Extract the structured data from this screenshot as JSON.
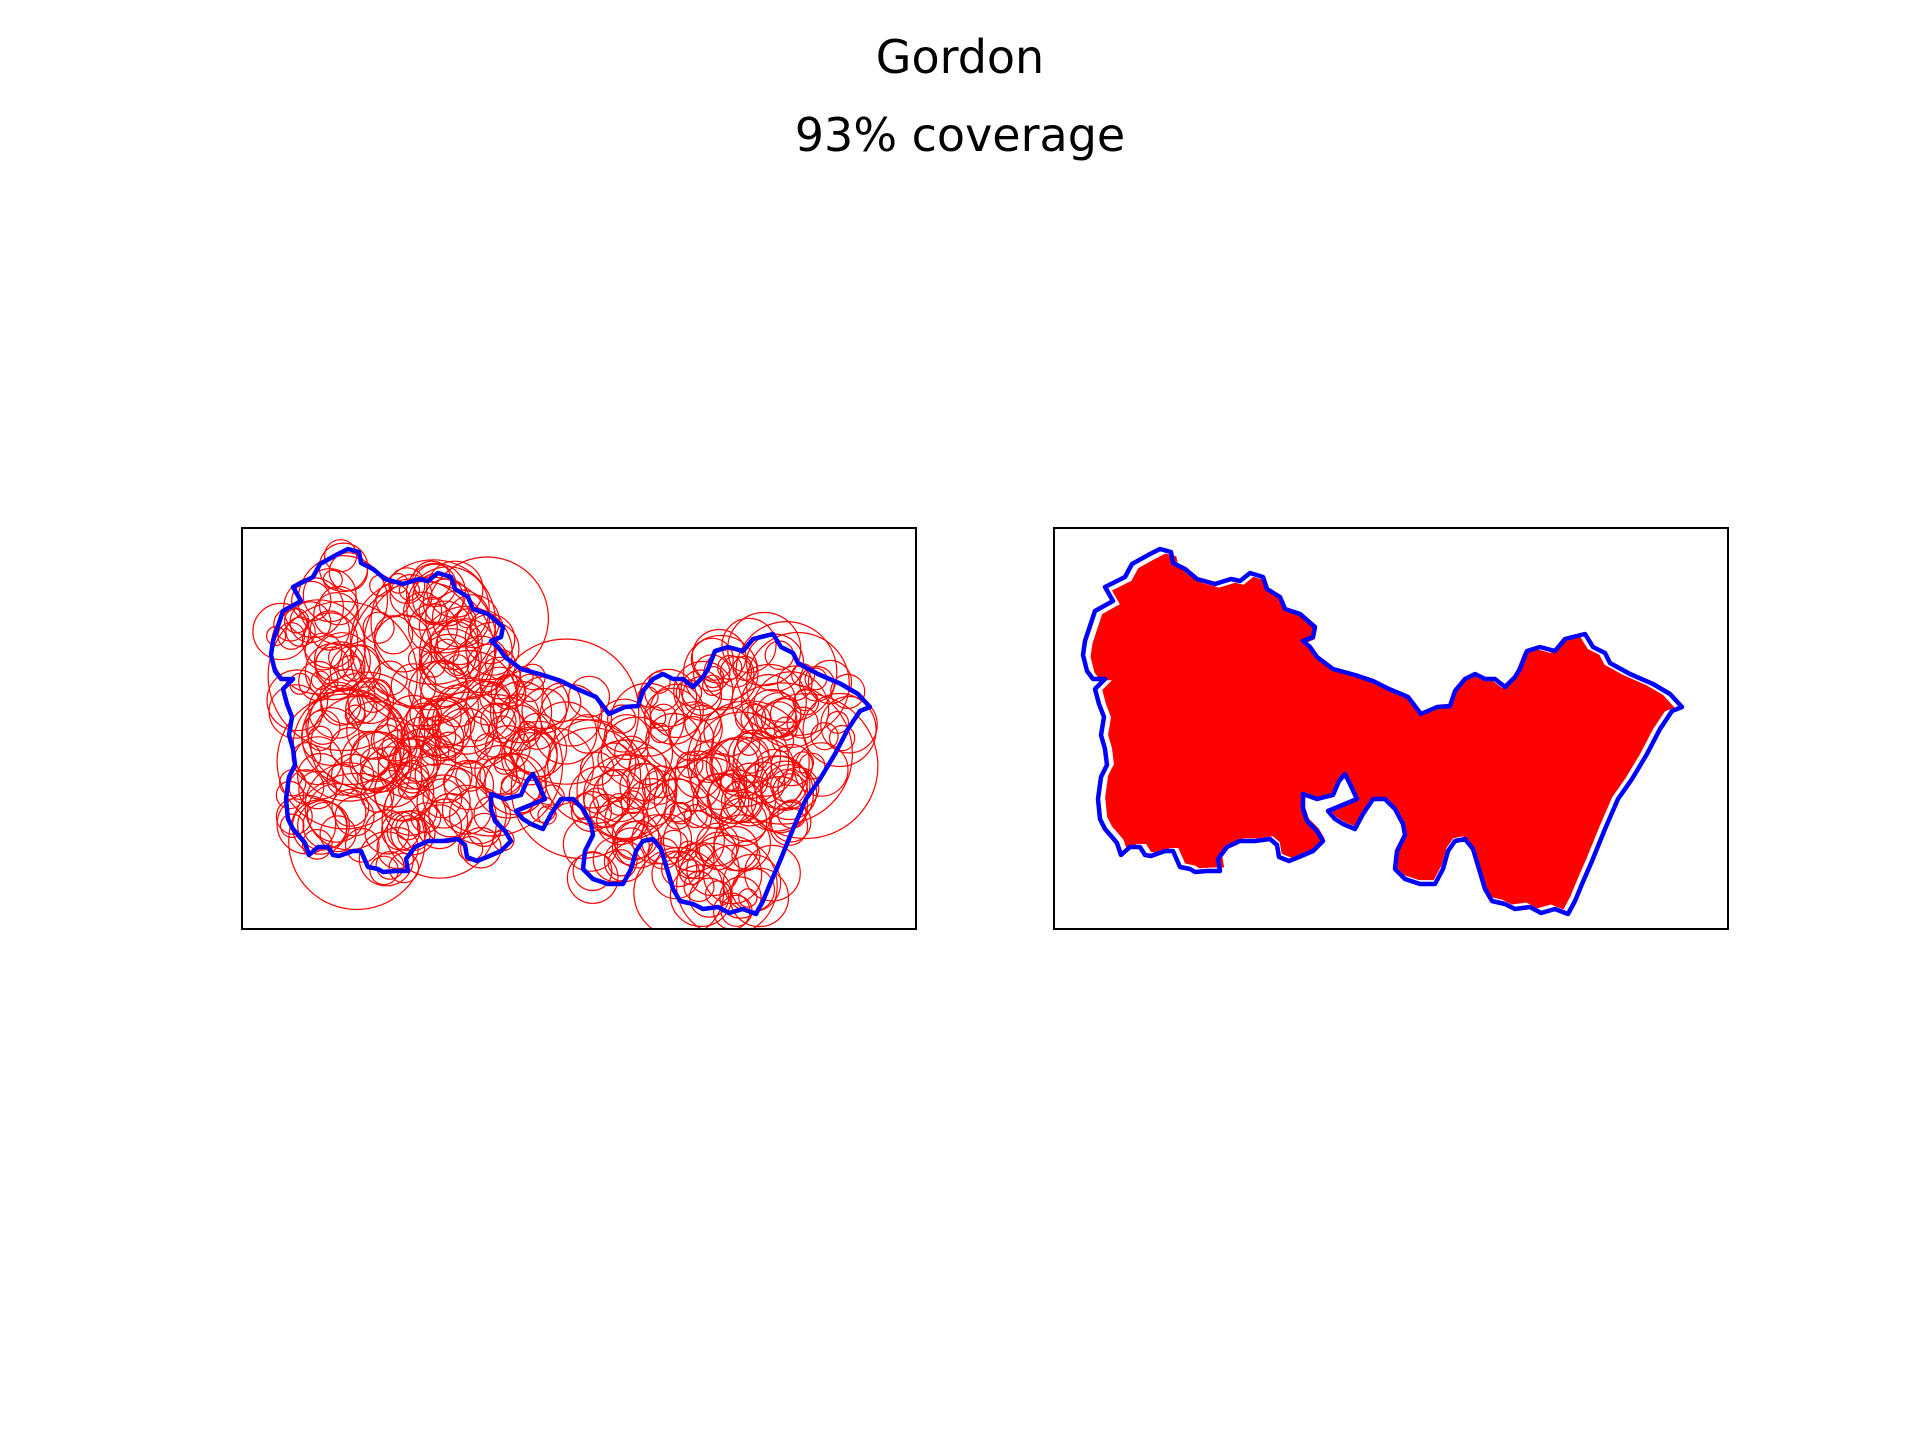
{
  "figure": {
    "title": "Gordon",
    "subtitle": "93% coverage"
  },
  "colors": {
    "boundary": "#0000ff",
    "circles": "#ff0000",
    "coverage_fill": "#ff0000",
    "frame": "#000000",
    "background": "#ffffff"
  },
  "map": {
    "region_name": "Gordon",
    "coverage_percent": 93,
    "panels": [
      {
        "id": "circles",
        "style": "outlined red circles inside blue boundary"
      },
      {
        "id": "coverage",
        "style": "solid red coverage inside blue boundary"
      }
    ],
    "axes_visible": false
  }
}
